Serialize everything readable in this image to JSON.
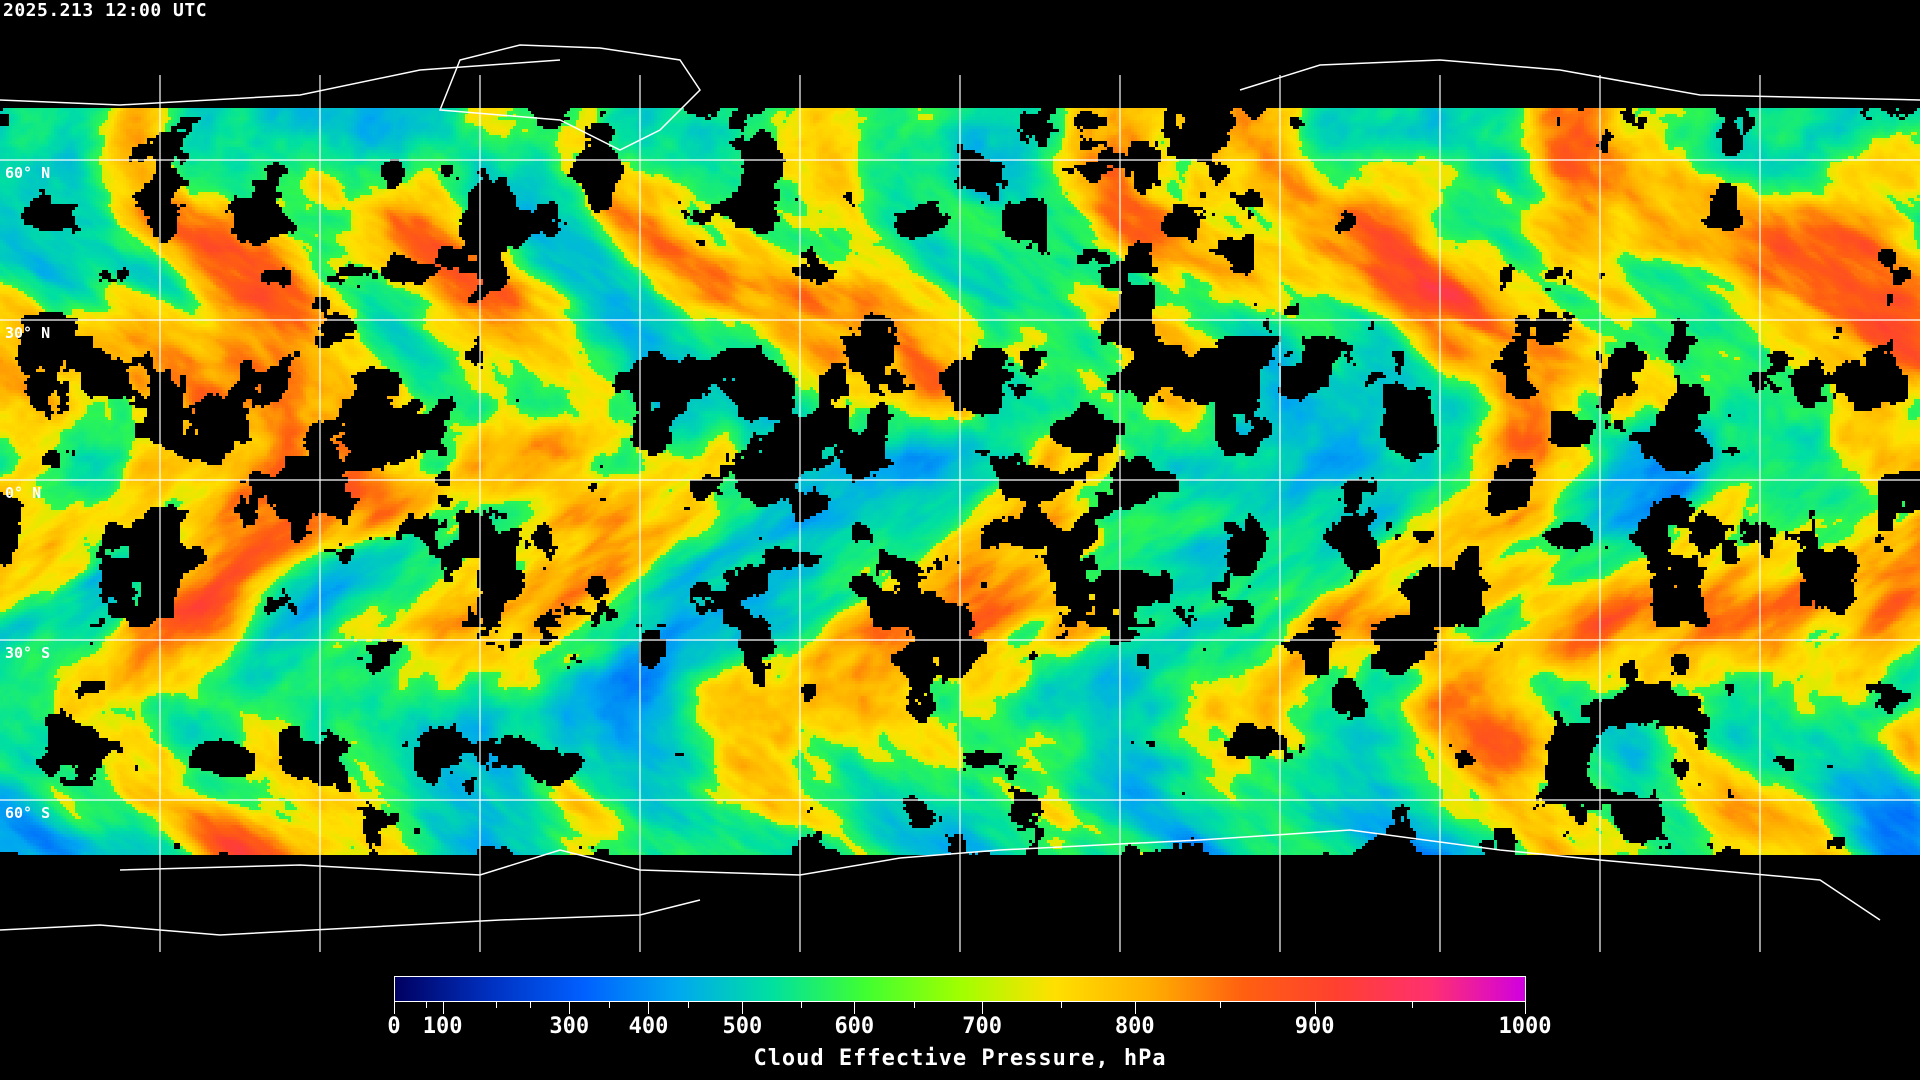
{
  "title": "2025.213 12:00 UTC",
  "latitude_labels": [
    "60° N",
    "30° N",
    "0° N",
    "30° S",
    "60° S"
  ],
  "colorbar": {
    "label": "Cloud Effective Pressure, hPa",
    "ticks": [
      {
        "value": 0,
        "label": "0"
      },
      {
        "value": 100,
        "label": "100"
      },
      {
        "value": 300,
        "label": "300"
      },
      {
        "value": 400,
        "label": "400"
      },
      {
        "value": 500,
        "label": "500"
      },
      {
        "value": 600,
        "label": "600"
      },
      {
        "value": 700,
        "label": "700"
      },
      {
        "value": 800,
        "label": "800"
      },
      {
        "value": 900,
        "label": "900"
      },
      {
        "value": 1000,
        "label": "1000"
      }
    ],
    "range": [
      0,
      1000
    ],
    "colors": [
      "#000060",
      "#0030c0",
      "#0060ff",
      "#00a8f0",
      "#00e0a0",
      "#40ff30",
      "#a0ff00",
      "#ffe000",
      "#ffb000",
      "#ff6010",
      "#ff4030",
      "#ff3070",
      "#d000e0"
    ]
  },
  "map": {
    "projection": "equirectangular",
    "grid_spacing_deg": 30,
    "no_data_color": "#000000",
    "grid_color": "#ffffff",
    "coastline_color": "#ffffff"
  }
}
